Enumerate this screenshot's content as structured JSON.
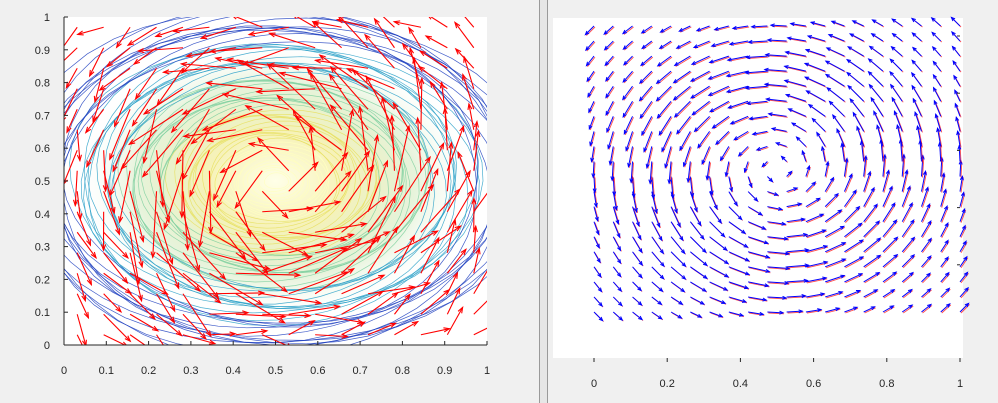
{
  "chart_data": [
    {
      "type": "quiver",
      "description_source": "left-figure",
      "overlay": "contour",
      "xlim": [
        0,
        1
      ],
      "ylim": [
        0,
        1
      ],
      "xticks": [
        "0",
        "0.1",
        "0.2",
        "0.3",
        "0.4",
        "0.5",
        "0.6",
        "0.7",
        "0.8",
        "0.9",
        "1"
      ],
      "yticks": [
        "0",
        "0.1",
        "0.2",
        "0.3",
        "0.4",
        "0.5",
        "0.6",
        "0.7",
        "0.8",
        "0.9",
        "1"
      ],
      "vortex_center": [
        0.5,
        0.5
      ],
      "rotation": "counterclockwise",
      "arrow_color": "#ff0000",
      "contour_colors": [
        "#1f3fbf",
        "#2aa0c8",
        "#7fd0a0",
        "#e8e060",
        "#ffffc0"
      ]
    },
    {
      "type": "quiver",
      "description_source": "right-figure",
      "xlim": [
        0,
        1
      ],
      "ylim": [
        0,
        1
      ],
      "xticks": [
        "0",
        "0.2",
        "0.4",
        "0.6",
        "0.8",
        "1"
      ],
      "vortex_center": [
        0.5,
        0.5
      ],
      "rotation": "counterclockwise",
      "series_colors": [
        "#0000ff",
        "#ff0000"
      ]
    }
  ]
}
